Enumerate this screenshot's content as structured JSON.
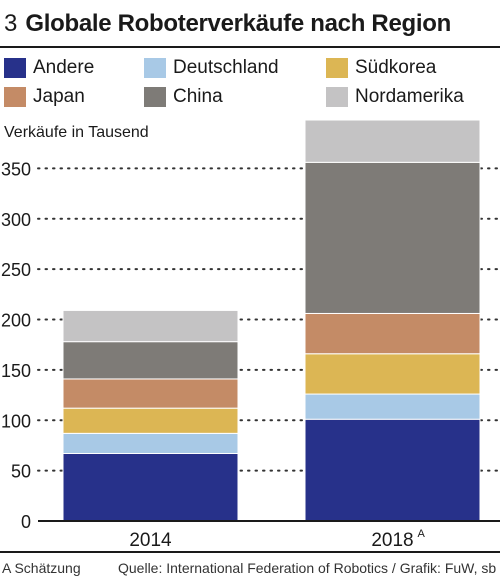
{
  "header": {
    "figure_number": "3",
    "title": "Globale Roboterverkäufe nach Region"
  },
  "footer": {
    "note": "A Schätzung",
    "source": "Quelle: International Federation of Robotics / Grafik: FuW, sb"
  },
  "colors": {
    "Andere": "#27318a",
    "Deutschland": "#a8c9e6",
    "Südkorea": "#dcb654",
    "Japan": "#c48b66",
    "China": "#7e7b77",
    "Nordamerika": "#c4c3c4"
  },
  "chart_data": {
    "type": "bar",
    "stacked": true,
    "title": "Globale Roboterverkäufe nach Region",
    "ylabel": "Verkäufe in Tausend",
    "xlabel": "",
    "categories": [
      "2014",
      "2018"
    ],
    "category_superscripts": [
      "",
      "A"
    ],
    "ylim": [
      0,
      400
    ],
    "yticks": [
      0,
      50,
      100,
      150,
      200,
      250,
      300,
      350
    ],
    "grid": "dotted horizontal",
    "legend_position": "top",
    "series": [
      {
        "name": "Andere",
        "values": [
          67,
          101
        ]
      },
      {
        "name": "Deutschland",
        "values": [
          20,
          25
        ]
      },
      {
        "name": "Südkorea",
        "values": [
          25,
          40
        ]
      },
      {
        "name": "Japan",
        "values": [
          29,
          40
        ]
      },
      {
        "name": "China",
        "values": [
          37,
          150
        ]
      },
      {
        "name": "Nordamerika",
        "values": [
          31,
          42
        ]
      }
    ]
  }
}
